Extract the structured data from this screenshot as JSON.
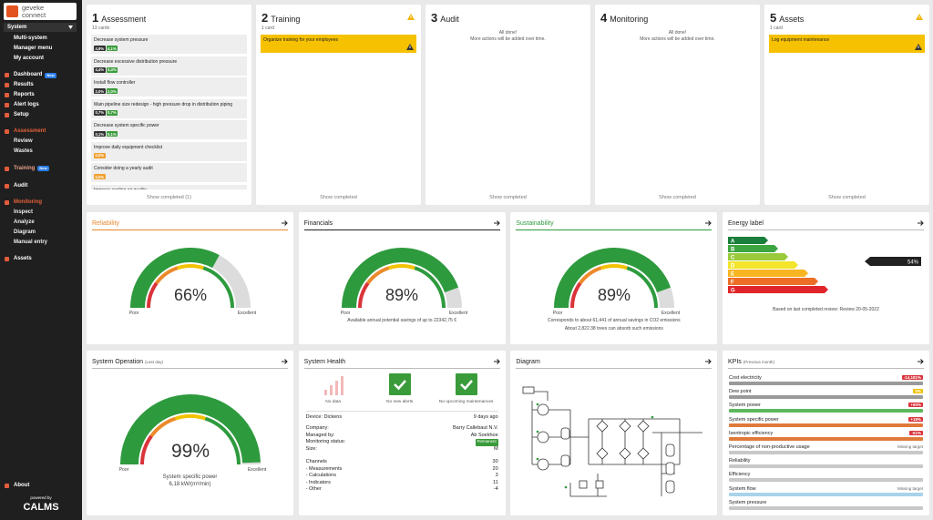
{
  "sidebar": {
    "logo": [
      "geveke",
      "connect"
    ],
    "selector": "System",
    "account_menu": [
      "Multi-system",
      "Manager menu",
      "My account"
    ],
    "nav": [
      {
        "label": "Dashboard",
        "badge": "New"
      },
      {
        "label": "Results"
      },
      {
        "label": "Reports"
      },
      {
        "label": "Alert logs"
      },
      {
        "label": "Setup"
      }
    ],
    "sections": [
      {
        "label": "Assessment",
        "items": [
          "Review",
          "Wastes"
        ]
      },
      {
        "label": "Training",
        "badge": "New"
      },
      {
        "label": "Audit"
      },
      {
        "label": "Monitoring",
        "items": [
          "Inspect",
          "Analyze",
          "Diagram",
          "Manual entry"
        ]
      },
      {
        "label": "Assets"
      }
    ],
    "about": "About",
    "powered_by": "powered by",
    "brand": "CALMS"
  },
  "steps": [
    {
      "number": "1",
      "title": "Assessment",
      "count": "13 cards",
      "cards": [
        {
          "text": "Decrease system pressure",
          "badges": [
            "4,9%",
            "4,1%"
          ]
        },
        {
          "text": "Decrease excessive distribution pressure",
          "badges": [
            "4,4%",
            "4,4%"
          ]
        },
        {
          "text": "Install flow controller",
          "badges": [
            "2,0%",
            "2,0%"
          ]
        },
        {
          "text": "Main pipeline size redesign - high pressure drop in distribution piping",
          "badges": [
            "0,7%",
            "0,7%"
          ]
        },
        {
          "text": "Decrease system specific power",
          "badges": [
            "0,1%",
            "0,1%"
          ]
        },
        {
          "text": "Improve daily equipment checklist",
          "badges": [
            "0,0%"
          ]
        },
        {
          "text": "Consider doing a yearly audit",
          "badges": [
            "0,0%"
          ]
        },
        {
          "text": "Improve cooling air quality"
        }
      ],
      "footer": "Show completed (1)"
    },
    {
      "number": "2",
      "title": "Training",
      "warning": true,
      "count": "1 card",
      "cards": [
        {
          "text": "Organize training for your employees",
          "warning": true
        }
      ],
      "footer": "Show completed"
    },
    {
      "number": "3",
      "title": "Audit",
      "message": [
        "All done!",
        "More actions will be added over time."
      ],
      "footer": "Show completed"
    },
    {
      "number": "4",
      "title": "Monitoring",
      "message": [
        "All done!",
        "More actions will be added over time."
      ],
      "footer": "Show completed"
    },
    {
      "number": "5",
      "title": "Assets",
      "warning": true,
      "count": "1 card",
      "cards": [
        {
          "text": "Log equipment maintenance",
          "warning": true
        }
      ],
      "footer": "Show completed"
    }
  ],
  "gauges": [
    {
      "title": "Reliability",
      "title_color": "#e8862a",
      "value": 66,
      "value_label": "66%",
      "range": [
        0,
        100
      ],
      "low": "Poor",
      "high": "Excellent"
    },
    {
      "title": "Financials",
      "title_color": "#222222",
      "value": 89,
      "value_label": "89%",
      "range": [
        0,
        100
      ],
      "low": "Poor",
      "high": "Excellent",
      "notes": [
        "Available annual potential savings of up to 22342,75 €"
      ]
    },
    {
      "title": "Sustainability",
      "title_color": "#2e9a3e",
      "value": 89,
      "value_label": "89%",
      "range": [
        0,
        100
      ],
      "low": "Poor",
      "high": "Excellent",
      "notes": [
        "Corresponds to about 61,441 of annual savings in CO2 emissions",
        "About 2,822.38 trees can absorb such emissions"
      ]
    }
  ],
  "energy_label": {
    "title": "Energy label",
    "classes": [
      {
        "label": "A",
        "color": "#1a7f3c"
      },
      {
        "label": "B",
        "color": "#3ea641"
      },
      {
        "label": "C",
        "color": "#9bc93c"
      },
      {
        "label": "D",
        "color": "#f2e52a"
      },
      {
        "label": "E",
        "color": "#f6b521"
      },
      {
        "label": "F",
        "color": "#ec6f25"
      },
      {
        "label": "G",
        "color": "#e0262b"
      }
    ],
    "marker": "54%",
    "note": "Based on last completed review: Review 20-05-2022"
  },
  "system_operation": {
    "title": "System Operation",
    "period": "(Last day)",
    "value": 99,
    "value_label": "99%",
    "range": [
      0,
      100
    ],
    "low": "Poor",
    "high": "Excellent",
    "metric": "System specific power",
    "metric_value": "6,18 kW/(m³/min)"
  },
  "system_health": {
    "title": "System Health",
    "statuses": [
      "No data",
      "No new alerts",
      "No upcoming maintenances"
    ],
    "device": "Device: Dickens",
    "last_seen": "9 days ago",
    "rows": [
      [
        "Company:",
        "Barry Callebaut N.V."
      ],
      [
        "Managed by:",
        "Ab Soekhoe"
      ],
      [
        "Monitoring status:",
        "Permanent"
      ],
      [
        "Size:",
        "M"
      ]
    ],
    "channels": [
      [
        "Channels",
        "30"
      ],
      [
        "- Measurements",
        "20"
      ],
      [
        "- Calculations",
        "3"
      ],
      [
        "- Indicators",
        "11"
      ],
      [
        "- Other",
        "-4"
      ]
    ]
  },
  "diagram": {
    "title": "Diagram"
  },
  "kpis": {
    "title": "KPIs",
    "period": "(Previous month)",
    "items": [
      {
        "name": "Cost electricity",
        "badge": "-14,181%",
        "badge_color": "#d9343a",
        "bar_color": "#9a9a9a"
      },
      {
        "name": "Dew point",
        "badge": "0%",
        "badge_color": "#f2c200",
        "bar_color": "#9a9a9a"
      },
      {
        "name": "System power",
        "badge": "+60%",
        "badge_color": "#d9343a",
        "bar_color": "#5cb85c"
      },
      {
        "name": "System specific power",
        "badge": "+18%",
        "badge_color": "#d9343a",
        "bar_color": "#e07a3a"
      },
      {
        "name": "Isentropic efficiency",
        "badge": "-61%",
        "badge_color": "#d9343a",
        "bar_color": "#e07a3a"
      },
      {
        "name": "Percentage of non-productive usage",
        "status": "Missing target",
        "bar_color": "#c8c8c8"
      },
      {
        "name": "Reliability",
        "bar_color": "#c8c8c8"
      },
      {
        "name": "Efficiency",
        "bar_color": "#c8c8c8"
      },
      {
        "name": "System flow",
        "status": "Missing target",
        "bar_color": "#a9d3ea"
      },
      {
        "name": "System pressure",
        "bar_color": "#c8c8c8"
      }
    ]
  }
}
